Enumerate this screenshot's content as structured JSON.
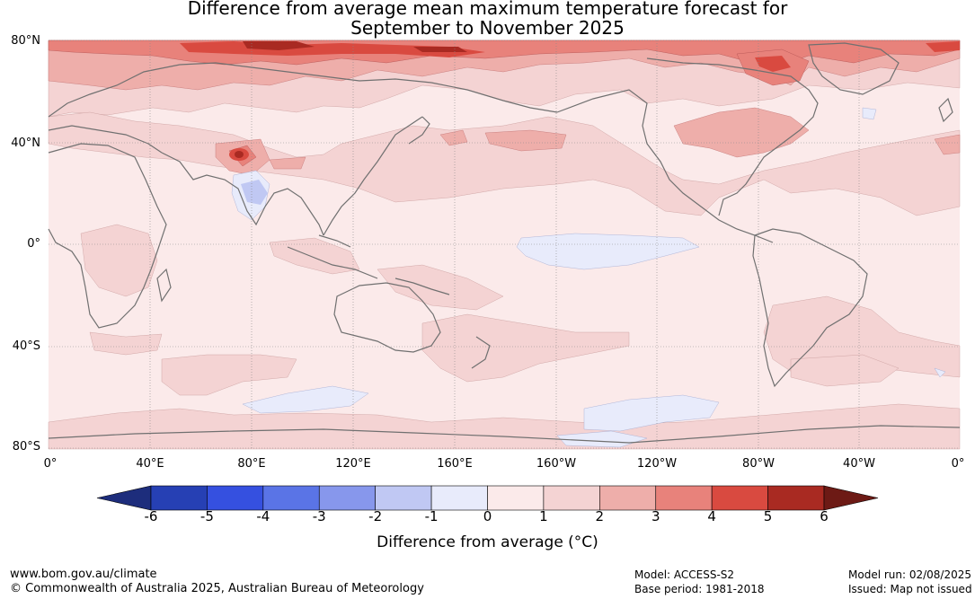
{
  "title": {
    "line1": "Difference from average mean maximum temperature forecast for",
    "line2": "September to November 2025"
  },
  "map": {
    "lat_labels": [
      "80°N",
      "40°N",
      "0°",
      "40°S",
      "80°S"
    ],
    "lon_labels": [
      "0°",
      "40°E",
      "80°E",
      "120°E",
      "160°E",
      "160°W",
      "120°W",
      "80°W",
      "40°W",
      "0°"
    ],
    "colors": {
      "ocean_base": "#fbeaea",
      "land_outline": "#707070",
      "grid": "#888888"
    }
  },
  "colorbar": {
    "ticks": [
      "-6",
      "-5",
      "-4",
      "-3",
      "-2",
      "-1",
      "0",
      "1",
      "2",
      "3",
      "4",
      "5",
      "6"
    ],
    "label": "Difference from average ($^\\circ$C)",
    "label_display": "Difference from average (°C)",
    "colors": [
      "#1d2d7c",
      "#2640b4",
      "#3550e0",
      "#5a74e6",
      "#8797ec",
      "#c0c8f3",
      "#e8ebfb",
      "#fbeaea",
      "#f4d3d3",
      "#eeaeaa",
      "#e8827b",
      "#d94a40",
      "#a92a22",
      "#6d1a15"
    ]
  },
  "footer": {
    "website": "www.bom.gov.au/climate",
    "copyright": "© Commonwealth of Australia 2025, Australian Bureau of Meteorology",
    "model": "Model: ACCESS-S2",
    "base_period": "Base period: 1981-2018",
    "model_run": "Model run: 02/08/2025",
    "issued": "Issued: Map not issued"
  }
}
